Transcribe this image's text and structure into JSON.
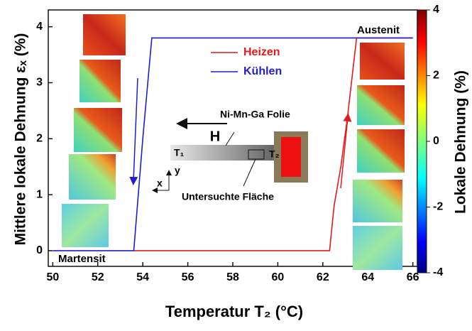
{
  "chart_data": {
    "type": "line",
    "xlabel": "Temperatur T₂ (°C)",
    "ylabel": "Mittlere lokale Dehnung εₓ (%)",
    "xlim": [
      49.8,
      66.2
    ],
    "xticks": [
      50,
      52,
      54,
      56,
      58,
      60,
      62,
      64,
      66
    ],
    "ylim": [
      -0.28,
      4.3
    ],
    "yticks": [
      0,
      1,
      2,
      3,
      4
    ],
    "series": [
      {
        "name": "Heizen",
        "color": "#e41a1c",
        "x": [
          53.6,
          62.3,
          62.5,
          62.8,
          63.1,
          63.5,
          66
        ],
        "values": [
          0,
          0,
          0.8,
          1.5,
          2.4,
          3.8,
          3.8
        ]
      },
      {
        "name": "Kühlen",
        "color": "#1f1fd0",
        "x": [
          50,
          53.6,
          54.0,
          54.4,
          66
        ],
        "values": [
          0,
          0,
          2.0,
          3.8,
          3.8
        ]
      }
    ],
    "colorbar": {
      "label": "Lokale Dehnung (%)",
      "lim": [
        -4,
        4
      ],
      "ticks": [
        4,
        2,
        0,
        -2,
        -4
      ]
    },
    "annotations": {
      "martensit": "Martensit",
      "austenit": "Austenit",
      "folie": "Ni-Mn-Ga Folie",
      "field": "H",
      "t1": "T₁",
      "t2": "T₂",
      "ax_x": "x",
      "ax_y": "y",
      "flaeche": "Untersuchte Fläche"
    }
  }
}
